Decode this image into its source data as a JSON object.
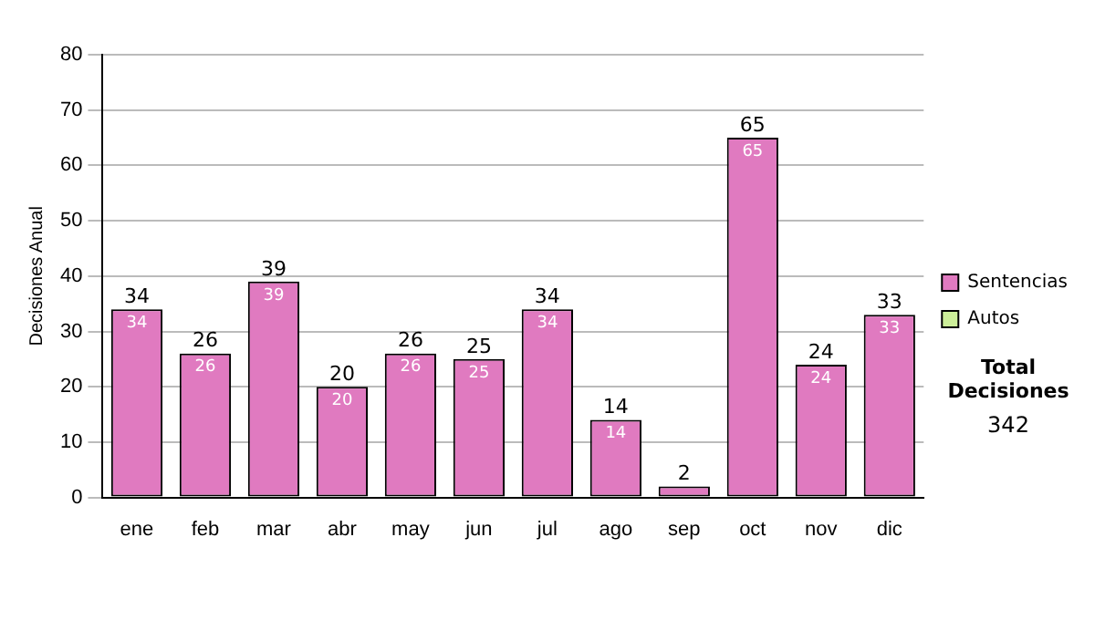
{
  "chart_data": {
    "type": "bar",
    "ylabel": "Decisiones Anual",
    "categories": [
      "ene",
      "feb",
      "mar",
      "abr",
      "may",
      "jun",
      "jul",
      "ago",
      "sep",
      "oct",
      "nov",
      "dic"
    ],
    "series": [
      {
        "name": "Sentencias",
        "color": "#e07ac0",
        "values": [
          34,
          26,
          39,
          20,
          26,
          25,
          34,
          14,
          2,
          65,
          24,
          33
        ],
        "value_labels": [
          "34",
          "26",
          "39",
          "20",
          "26",
          "25",
          "34",
          "14",
          null,
          "65",
          "24",
          "33"
        ]
      },
      {
        "name": "Autos",
        "color": "#ccee99",
        "values": [
          0,
          0,
          0,
          0,
          0,
          0,
          0,
          0,
          0,
          0,
          0,
          0
        ]
      }
    ],
    "stacked": true,
    "totals": [
      "34",
      "26",
      "39",
      "20",
      "26",
      "25",
      "34",
      "14",
      "2",
      "65",
      "24",
      "33"
    ],
    "ylim": [
      0,
      80
    ],
    "yticks": [
      0,
      10,
      20,
      30,
      40,
      50,
      60,
      70,
      80
    ],
    "grid": "y",
    "legend": "right",
    "annotations": [
      "Total Decisiones",
      "342"
    ]
  }
}
